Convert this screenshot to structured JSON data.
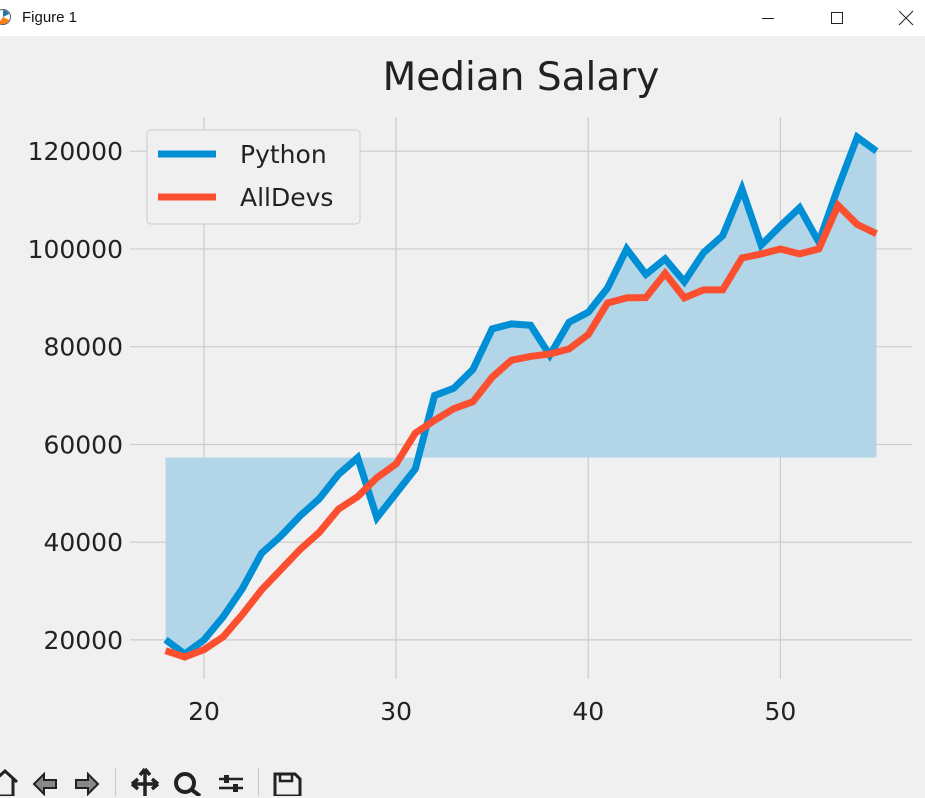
{
  "window": {
    "title": "Figure 1",
    "icons": [
      "app-icon",
      "minimize-icon",
      "maximize-icon",
      "close-icon"
    ]
  },
  "toolbar": {
    "buttons": [
      "home-icon",
      "back-icon",
      "forward-icon",
      "pan-icon",
      "zoom-icon",
      "configure-subplots-icon",
      "save-icon"
    ]
  },
  "colors": {
    "python": "#008fd5",
    "alldevs": "#fc4f30",
    "fill": "#b3d5e8",
    "grid": "#cbcbcb",
    "background": "#f0f0f0"
  },
  "chart_data": {
    "type": "line",
    "title": "Median Salary",
    "xlabel": "",
    "ylabel": "",
    "xlim": [
      16.15,
      56.85
    ],
    "ylim": [
      12000,
      127000
    ],
    "xticks": [
      20,
      30,
      40,
      50
    ],
    "yticks": [
      20000,
      40000,
      60000,
      80000,
      100000,
      120000
    ],
    "grid": true,
    "legend_position": "top-left",
    "fill_between": {
      "series": "Python",
      "baseline": 57287
    },
    "x": [
      18,
      19,
      20,
      21,
      22,
      23,
      24,
      25,
      26,
      27,
      28,
      29,
      30,
      31,
      32,
      33,
      34,
      35,
      36,
      37,
      38,
      39,
      40,
      41,
      42,
      43,
      44,
      45,
      46,
      47,
      48,
      49,
      50,
      51,
      52,
      53,
      54,
      55
    ],
    "series": [
      {
        "name": "Python",
        "values": [
          20046,
          17100,
          20000,
          24744,
          30500,
          37732,
          41247,
          45372,
          48876,
          53850,
          57287,
          45000,
          50000,
          55000,
          70000,
          71496,
          75370,
          83640,
          84666,
          84392,
          78254,
          85000,
          87038,
          91991,
          100000,
          94796,
          97962,
          93302,
          99240,
          102736,
          112285,
          100771,
          104708,
          108423,
          101407,
          112542,
          122870,
          120000
        ]
      },
      {
        "name": "AllDevs",
        "values": [
          17784,
          16500,
          18012,
          20628,
          25206,
          30252,
          34368,
          38496,
          42000,
          46752,
          49320,
          53200,
          56000,
          62316,
          64928,
          67317,
          68748,
          73752,
          77232,
          78000,
          78508,
          79536,
          82488,
          88935,
          90000,
          90056,
          95000,
          90000,
          91633,
          91660,
          98150,
          98964,
          100000,
          98988,
          100000,
          108923,
          105000,
          103117
        ]
      }
    ]
  }
}
